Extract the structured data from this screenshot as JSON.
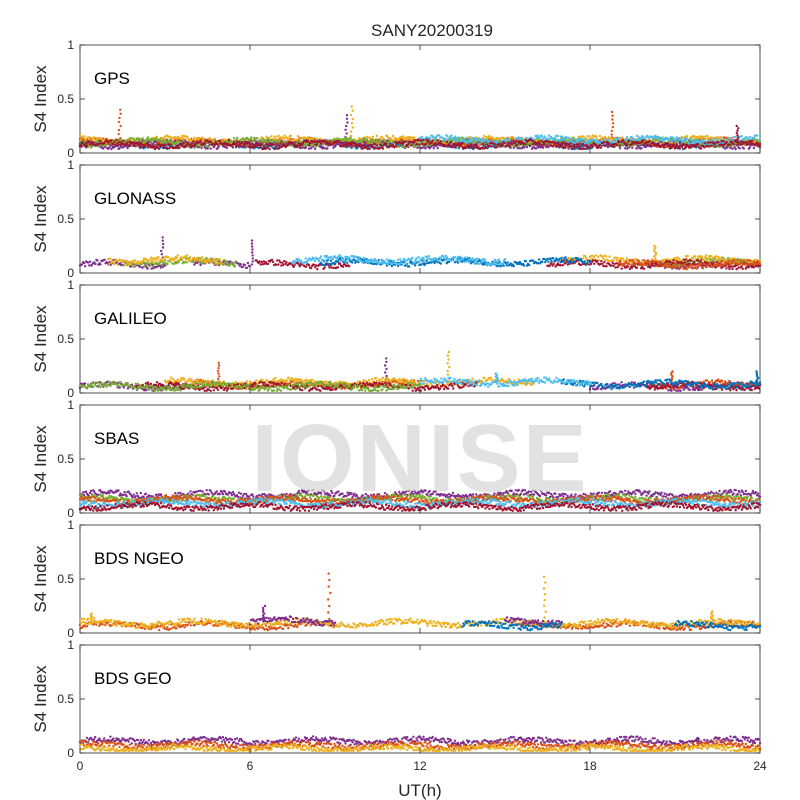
{
  "chart_data": {
    "type": "scatter",
    "title": "SANY20200319",
    "xlabel": "UT(h)",
    "ylabel": "S4 Index",
    "xlim": [
      0,
      24
    ],
    "ylim": [
      0,
      1
    ],
    "xticks": [
      "0",
      "6",
      "12",
      "18",
      "24"
    ],
    "yticks": [
      "0",
      "0.5",
      "1"
    ],
    "watermark": "IONISE",
    "colors": [
      "#0072BD",
      "#D95319",
      "#EDB120",
      "#7E2F8E",
      "#77AC30",
      "#4DBEEE",
      "#A2142F"
    ],
    "panels": [
      {
        "name": "GPS",
        "baseline": 0.1,
        "series": [
          {
            "color": "#0072BD",
            "segments": [
              [
                0,
                24
              ]
            ],
            "spikes": []
          },
          {
            "color": "#D95319",
            "segments": [
              [
                0,
                24
              ]
            ],
            "spikes": [
              [
                1.4,
                0.4
              ],
              [
                18.8,
                0.38
              ]
            ]
          },
          {
            "color": "#EDB120",
            "segments": [
              [
                0,
                24
              ]
            ],
            "spikes": [
              [
                9.6,
                0.43
              ]
            ]
          },
          {
            "color": "#7E2F8E",
            "segments": [
              [
                0,
                24
              ]
            ],
            "spikes": [
              [
                9.4,
                0.35
              ]
            ]
          },
          {
            "color": "#77AC30",
            "segments": [
              [
                0,
                24
              ]
            ],
            "spikes": []
          },
          {
            "color": "#4DBEEE",
            "segments": [
              [
                12,
                24
              ]
            ],
            "spikes": []
          },
          {
            "color": "#A2142F",
            "segments": [
              [
                0,
                24
              ]
            ],
            "spikes": [
              [
                23.2,
                0.25
              ]
            ]
          }
        ]
      },
      {
        "name": "GLONASS",
        "baseline": 0.1,
        "series": [
          {
            "color": "#7E2F8E",
            "segments": [
              [
                0,
                3.0
              ],
              [
                4.0,
                6.0
              ],
              [
                20.0,
                24.0
              ]
            ],
            "spikes": [
              [
                2.9,
                0.33
              ],
              [
                6.1,
                0.3
              ]
            ]
          },
          {
            "color": "#77AC30",
            "segments": [
              [
                1.5,
                5.5
              ],
              [
                20.5,
                24.0
              ]
            ],
            "spikes": []
          },
          {
            "color": "#EDB120",
            "segments": [
              [
                1.0,
                5.0
              ],
              [
                17.0,
                24.0
              ]
            ],
            "spikes": [
              [
                20.3,
                0.25
              ]
            ]
          },
          {
            "color": "#A2142F",
            "segments": [
              [
                6.2,
                9.5
              ],
              [
                16.5,
                24.0
              ]
            ],
            "spikes": []
          },
          {
            "color": "#0072BD",
            "segments": [
              [
                8.5,
                18.0
              ]
            ],
            "spikes": []
          },
          {
            "color": "#4DBEEE",
            "segments": [
              [
                7.5,
                15.0
              ]
            ],
            "spikes": []
          },
          {
            "color": "#D95319",
            "segments": [
              [
                19.0,
                24.0
              ]
            ],
            "spikes": []
          }
        ]
      },
      {
        "name": "GALILEO",
        "baseline": 0.08,
        "series": [
          {
            "color": "#7E2F8E",
            "segments": [
              [
                0,
                5.0
              ],
              [
                18.0,
                24.0
              ]
            ],
            "spikes": [
              [
                10.8,
                0.32
              ]
            ]
          },
          {
            "color": "#D95319",
            "segments": [
              [
                4.0,
                12.0
              ],
              [
                20.0,
                24.0
              ]
            ],
            "spikes": [
              [
                4.9,
                0.28
              ],
              [
                20.9,
                0.2
              ]
            ]
          },
          {
            "color": "#EDB120",
            "segments": [
              [
                3.0,
                16.0
              ]
            ],
            "spikes": [
              [
                13.0,
                0.38
              ]
            ]
          },
          {
            "color": "#A2142F",
            "segments": [
              [
                2.0,
                14.0
              ],
              [
                20.0,
                24.0
              ]
            ],
            "spikes": []
          },
          {
            "color": "#0072BD",
            "segments": [
              [
                17.0,
                24.0
              ]
            ],
            "spikes": [
              [
                23.9,
                0.2
              ]
            ]
          },
          {
            "color": "#4DBEEE",
            "segments": [
              [
                12.0,
                18.0
              ]
            ],
            "spikes": [
              [
                14.7,
                0.18
              ]
            ]
          },
          {
            "color": "#77AC30",
            "segments": [
              [
                0,
                12.0
              ]
            ],
            "spikes": []
          }
        ]
      },
      {
        "name": "SBAS",
        "baseline": 0.12,
        "series": [
          {
            "color": "#7E2F8E",
            "segments": [
              [
                0,
                24
              ]
            ],
            "level": 0.17,
            "spikes": []
          },
          {
            "color": "#77AC30",
            "segments": [
              [
                0,
                24
              ]
            ],
            "level": 0.13,
            "spikes": []
          },
          {
            "color": "#D95319",
            "segments": [
              [
                0,
                24
              ]
            ],
            "level": 0.12,
            "spikes": []
          },
          {
            "color": "#4DBEEE",
            "segments": [
              [
                0,
                24
              ]
            ],
            "level": 0.09,
            "spikes": []
          },
          {
            "color": "#A2142F",
            "segments": [
              [
                0,
                24
              ]
            ],
            "level": 0.06,
            "spikes": []
          }
        ]
      },
      {
        "name": "BDS NGEO",
        "baseline": 0.09,
        "series": [
          {
            "color": "#D95319",
            "segments": [
              [
                0,
                9.0
              ],
              [
                15.5,
                24.0
              ]
            ],
            "spikes": [
              [
                8.8,
                0.55
              ]
            ]
          },
          {
            "color": "#EDB120",
            "segments": [
              [
                0,
                24.0
              ]
            ],
            "spikes": [
              [
                16.4,
                0.52
              ],
              [
                0.4,
                0.18
              ],
              [
                22.3,
                0.2
              ]
            ]
          },
          {
            "color": "#7E2F8E",
            "segments": [
              [
                6.0,
                9.0
              ],
              [
                15.0,
                17.0
              ]
            ],
            "spikes": [
              [
                6.5,
                0.25
              ]
            ]
          },
          {
            "color": "#0072BD",
            "segments": [
              [
                13.5,
                17.0
              ],
              [
                21.0,
                24.0
              ]
            ],
            "spikes": []
          }
        ]
      },
      {
        "name": "BDS GEO",
        "baseline": 0.1,
        "series": [
          {
            "color": "#7E2F8E",
            "segments": [
              [
                0,
                24
              ]
            ],
            "level": 0.11,
            "spikes": [
              [
                21.8,
                0.14
              ]
            ]
          },
          {
            "color": "#D95319",
            "segments": [
              [
                0,
                24
              ]
            ],
            "level": 0.07,
            "spikes": []
          },
          {
            "color": "#EDB120",
            "segments": [
              [
                0,
                24
              ]
            ],
            "level": 0.04,
            "spikes": []
          }
        ]
      }
    ]
  }
}
